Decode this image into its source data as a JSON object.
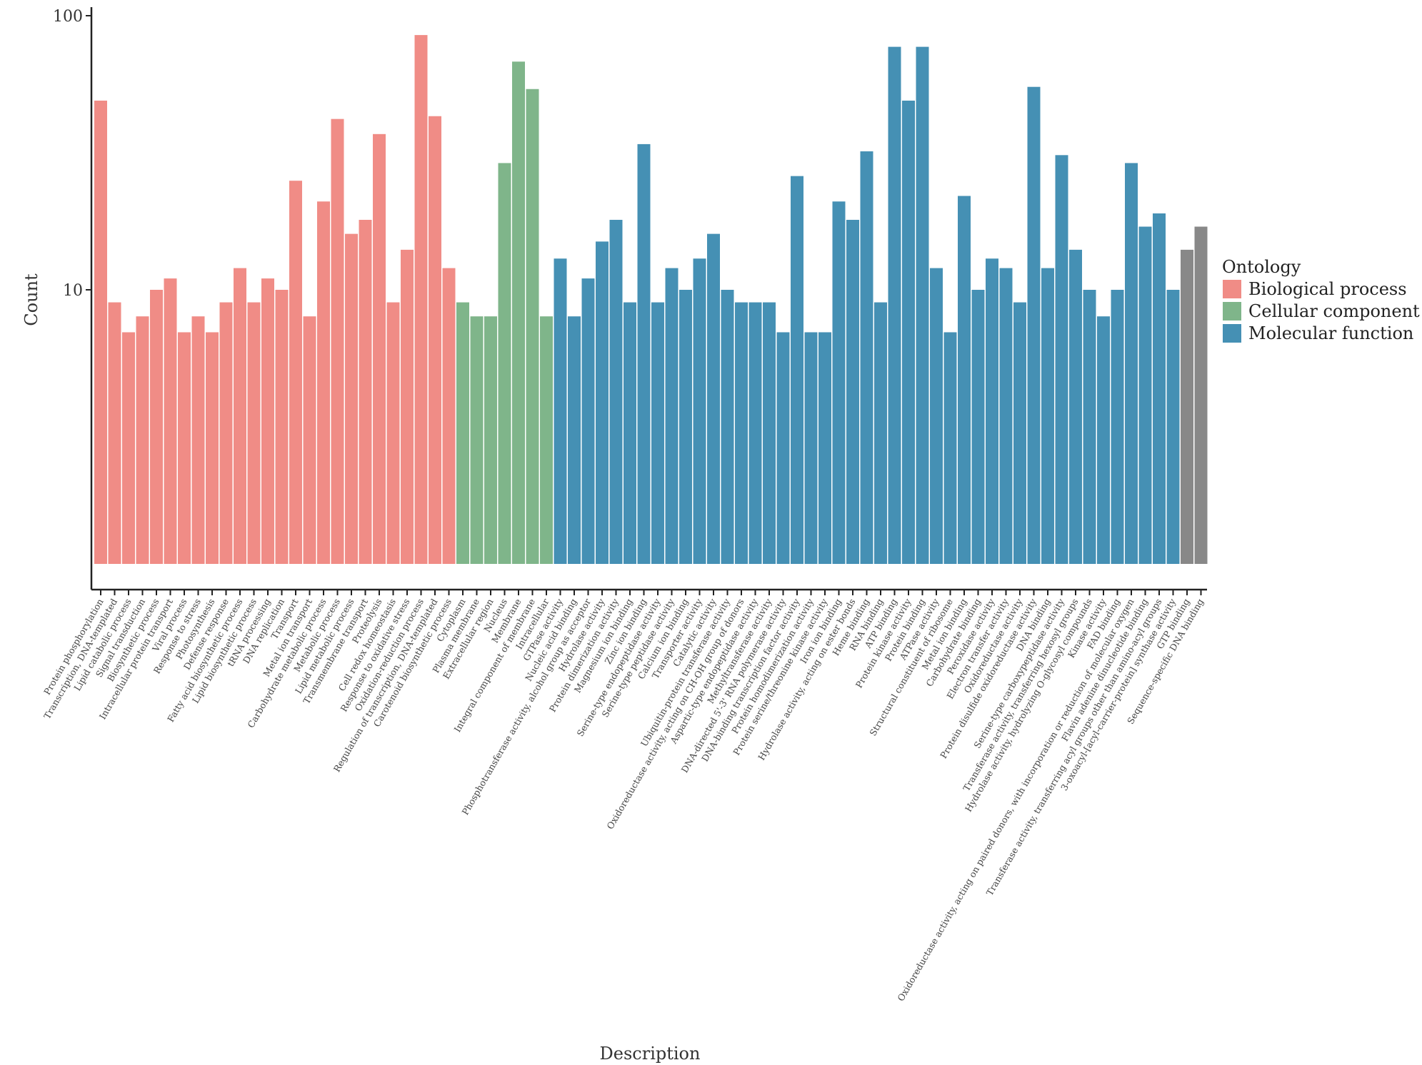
{
  "chart_data": {
    "type": "bar",
    "xlabel": "Description",
    "ylabel": "Count",
    "yscale": "log",
    "ylim": [
      1,
      100
    ],
    "yticks": [
      10,
      100
    ],
    "legend": {
      "title": "Ontology",
      "placement": "right",
      "entries": [
        {
          "name": "Biological process",
          "color": "#F08C86"
        },
        {
          "name": "Cellular component",
          "color": "#7FB58A"
        },
        {
          "name": "Molecular function",
          "color": "#4590B4"
        }
      ]
    },
    "categories": [
      "Protein phosphorylation",
      "Transcription, DNA-templated",
      "Lipid catabolic process",
      "Signal transduction",
      "Biosynthetic process",
      "Intracellular protein transport",
      "Viral process",
      "Response to stress",
      "Photosynthesis",
      "Defense response",
      "Fatty acid biosynthetic process",
      "Lipid biosynthetic process",
      "tRNA processing",
      "DNA replication",
      "Transport",
      "Metal ion transport",
      "Carbohydrate metabolic process",
      "Metabolic process",
      "Lipid metabolic process",
      "Transmembrane transport",
      "Proteolysis",
      "Cell redox homeostasis",
      "Response to oxidative stress",
      "Oxidation-reduction process",
      "Regulation of transcription, DNA-templated",
      "Carotenoid biosynthetic process",
      "Cytoplasm",
      "Plasma membrane",
      "Extracellular region",
      "Nucleus",
      "Membrane",
      "Integral component of membrane",
      "Intracellular",
      "GTPase activity",
      "Nucleic acid binding",
      "Phosphotransferase activity, alcohol group as acceptor",
      "Hydrolase activity",
      "Protein dimerization activity",
      "Magnesium ion binding",
      "Zinc ion binding",
      "Serine-type endopeptidase activity",
      "Serine-type peptidase activity",
      "Calcium ion binding",
      "Transporter activity",
      "Catalytic activity",
      "Ubiquitin-protein transferase activity",
      "Oxidoreductase activity, acting on CH-OH group of donors",
      "Aspartic-type endopeptidase activity",
      "Methyltransferase activity",
      "DNA-directed 5'-3' RNA polymerase activity",
      "DNA-binding transcription factor activity",
      "Protein homodimerization activity",
      "Protein serine/threonine kinase activity",
      "Iron ion binding",
      "Hydrolase activity, acting on ester bonds",
      "Heme binding",
      "RNA binding",
      "ATP binding",
      "Protein kinase activity",
      "Protein binding",
      "ATPase activity",
      "Structural constituent of ribosome",
      "Metal ion binding",
      "Carbohydrate binding",
      "Peroxidase activity",
      "Electron transfer activity",
      "Oxidoreductase activity",
      "Protein disulfide oxidoreductase activity",
      "DNA binding",
      "Serine-type carboxypeptidase activity",
      "Transferase activity, transferring hexosyl groups",
      "Hydrolase activity, hydrolyzing O-glycosyl compounds",
      "Kinase activity",
      "FAD binding",
      "Oxidoreductase activity, acting on paired donors, with incorporation or reduction of molecular oxygen",
      "Flavin adenine dinucleotide binding",
      "Transferase activity, transferring acyl groups other than amino-acyl groups",
      "3-oxoacyl-[acyl-carrier-protein] synthase activity",
      "GTP binding",
      "Sequence-specific DNA binding"
    ],
    "values": [
      49,
      9,
      7,
      8,
      10,
      11,
      7,
      8,
      7,
      9,
      12,
      9,
      11,
      10,
      25,
      8,
      21,
      42,
      16,
      18,
      37,
      9,
      14,
      85,
      43,
      12,
      9,
      8,
      8,
      29,
      68,
      54,
      8,
      13,
      8,
      11,
      15,
      18,
      9,
      34,
      9,
      12,
      10,
      13,
      16,
      10,
      9,
      9,
      9,
      7,
      26,
      7,
      7,
      21,
      18,
      32,
      9,
      77,
      49,
      77,
      12,
      7,
      22,
      10,
      13,
      12,
      9,
      55,
      12,
      31,
      14,
      10,
      8,
      10,
      29,
      17,
      19,
      10,
      14,
      17
    ],
    "ontology": [
      "Biological process",
      "Biological process",
      "Biological process",
      "Biological process",
      "Biological process",
      "Biological process",
      "Biological process",
      "Biological process",
      "Biological process",
      "Biological process",
      "Biological process",
      "Biological process",
      "Biological process",
      "Biological process",
      "Biological process",
      "Biological process",
      "Biological process",
      "Biological process",
      "Biological process",
      "Biological process",
      "Biological process",
      "Biological process",
      "Biological process",
      "Biological process",
      "Biological process",
      "Biological process",
      "Cellular component",
      "Cellular component",
      "Cellular component",
      "Cellular component",
      "Cellular component",
      "Cellular component",
      "Cellular component",
      "Molecular function",
      "Molecular function",
      "Molecular function",
      "Molecular function",
      "Molecular function",
      "Molecular function",
      "Molecular function",
      "Molecular function",
      "Molecular function",
      "Molecular function",
      "Molecular function",
      "Molecular function",
      "Molecular function",
      "Molecular function",
      "Molecular function",
      "Molecular function",
      "Molecular function",
      "Molecular function",
      "Molecular function",
      "Molecular function",
      "Molecular function",
      "Molecular function",
      "Molecular function",
      "Molecular function",
      "Molecular function",
      "Molecular function",
      "Molecular function",
      "Molecular function",
      "Molecular function",
      "Molecular function",
      "Molecular function",
      "Molecular function",
      "Molecular function",
      "Molecular function",
      "Molecular function",
      "Molecular function",
      "Molecular function",
      "Molecular function",
      "Molecular function",
      "Molecular function",
      "Molecular function",
      "Molecular function",
      "Molecular function",
      "Molecular function",
      "Molecular function"
    ]
  }
}
